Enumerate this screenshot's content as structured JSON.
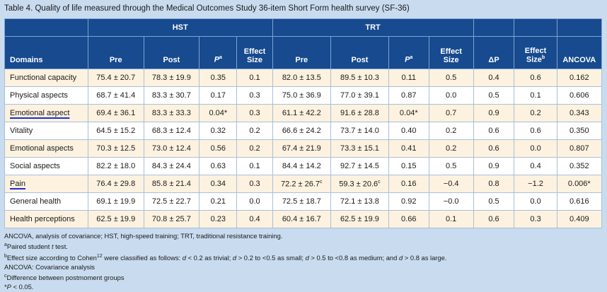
{
  "caption": "Table 4.  Quality of life measured through the Medical Outcomes Study 36-item Short Form health survey (SF-36)",
  "groups": {
    "hst": "HST",
    "trt": "TRT"
  },
  "columns": {
    "domains": "Domains",
    "pre": "Pre",
    "post": "Post",
    "p": "P",
    "p_sup": "a",
    "effect_size": "Effect Size",
    "effect_size_b": "Effect Size",
    "effect_size_b_sup": "b",
    "delta_p": "ΔP",
    "ancova": "ANCOVA"
  },
  "rows": [
    {
      "domain": "Functional capacity",
      "hst_pre": "75.4 ± 20.7",
      "hst_post": "78.3 ± 19.9",
      "hst_p": "0.35",
      "hst_es": "0.1",
      "trt_pre": "82.0 ± 13.5",
      "trt_post": "89.5 ± 10.3",
      "trt_p": "0.11",
      "trt_es": "0.5",
      "delta_p": "0.4",
      "es_b": "0.6",
      "ancova": "0.162"
    },
    {
      "domain": "Physical aspects",
      "hst_pre": "68.7 ± 41.4",
      "hst_post": "83.3 ± 30.7",
      "hst_p": "0.17",
      "hst_es": "0.3",
      "trt_pre": "75.0 ± 36.9",
      "trt_post": "77.0 ± 39.1",
      "trt_p": "0.87",
      "trt_es": "0.0",
      "delta_p": "0.5",
      "es_b": "0.1",
      "ancova": "0.606"
    },
    {
      "domain": "Emotional aspect",
      "hst_pre": "69.4 ± 36.1",
      "hst_post": "83.3 ± 33.3",
      "hst_p": "0.04*",
      "hst_es": "0.3",
      "trt_pre": "61.1 ± 42.2",
      "trt_post": "91.6 ± 28.8",
      "trt_p": "0.04*",
      "trt_es": "0.7",
      "delta_p": "0.9",
      "es_b": "0.2",
      "ancova": "0.343",
      "marked": true
    },
    {
      "domain": "Vitality",
      "hst_pre": "64.5 ± 15.2",
      "hst_post": "68.3 ± 12.4",
      "hst_p": "0.32",
      "hst_es": "0.2",
      "trt_pre": "66.6 ± 24.2",
      "trt_post": "73.7 ± 14.0",
      "trt_p": "0.40",
      "trt_es": "0.2",
      "delta_p": "0.6",
      "es_b": "0.6",
      "ancova": "0.350"
    },
    {
      "domain": "Emotional aspects",
      "hst_pre": "70.3 ± 12.5",
      "hst_post": "73.0 ± 12.4",
      "hst_p": "0.56",
      "hst_es": "0.2",
      "trt_pre": "67.4 ± 21.9",
      "trt_post": "73.3 ± 15.1",
      "trt_p": "0.41",
      "trt_es": "0.2",
      "delta_p": "0.6",
      "es_b": "0.0",
      "ancova": "0.807"
    },
    {
      "domain": "Social aspects",
      "hst_pre": "82.2 ± 18.0",
      "hst_post": "84.3 ± 24.4",
      "hst_p": "0.63",
      "hst_es": "0.1",
      "trt_pre": "84.4 ± 14.2",
      "trt_post": "92.7 ± 14.5",
      "trt_p": "0.15",
      "trt_es": "0.5",
      "delta_p": "0.9",
      "es_b": "0.4",
      "ancova": "0.352"
    },
    {
      "domain": "Pain",
      "hst_pre": "76.4 ± 29.8",
      "hst_post": "85.8 ± 21.4",
      "hst_p": "0.34",
      "hst_es": "0.3",
      "trt_pre": "72.2 ± 26.7",
      "trt_pre_sup": "c",
      "trt_post": "59.3 ± 20.6",
      "trt_post_sup": "c",
      "trt_p": "0.16",
      "trt_es": "−0.4",
      "delta_p": "0.8",
      "es_b": "−1.2",
      "ancova": "0.006*",
      "marked": true
    },
    {
      "domain": "General health",
      "hst_pre": "69.1 ± 19.9",
      "hst_post": "72.5 ± 22.7",
      "hst_p": "0.21",
      "hst_es": "0.0",
      "trt_pre": "72.5 ± 18.7",
      "trt_post": "72.1 ± 13.8",
      "trt_p": "0.92",
      "trt_es": "−0.0",
      "delta_p": "0.5",
      "es_b": "0.0",
      "ancova": "0.616"
    },
    {
      "domain": "Health perceptions",
      "hst_pre": "62.5 ± 19.9",
      "hst_post": "70.8 ± 25.7",
      "hst_p": "0.23",
      "hst_es": "0.4",
      "trt_pre": "60.4 ± 16.7",
      "trt_post": "62.5 ± 19.9",
      "trt_p": "0.66",
      "trt_es": "0.1",
      "delta_p": "0.6",
      "es_b": "0.3",
      "ancova": "0.409"
    }
  ],
  "footnotes": {
    "abbrev": "ANCOVA, analysis of covariance; HST, high-speed training; TRT, traditional resistance training.",
    "a_sup": "a",
    "a_text_1": "Paired student ",
    "a_text_t": "t",
    "a_text_2": " test.",
    "b_sup": "b",
    "b_text_1": "Effect size according to Cohen",
    "b_ref": "12",
    "b_text_2": " were classified as follows: ",
    "b_d": "d",
    "b_t1": " < 0.2 as trivial; ",
    "b_t2": " > 0.2 to <0.5 as small; ",
    "b_t3": " > 0.5 to <0.8 as medium; and ",
    "b_t4": " > 0.8 as large.",
    "ancova": "ANCOVA: Covariance analysis",
    "c_sup": "c",
    "c_text": "Difference between postmoment groups",
    "star": "*",
    "star_p": "P",
    "star_text": " < 0.05."
  }
}
